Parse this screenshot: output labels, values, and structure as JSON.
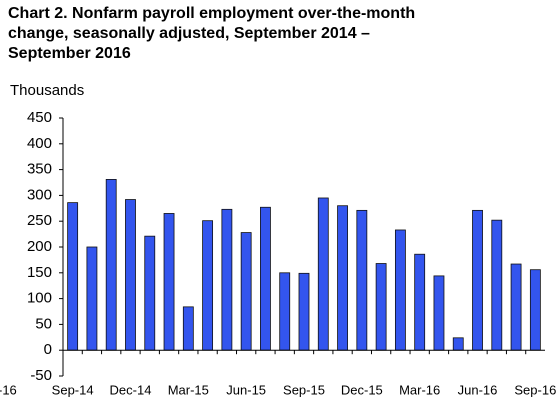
{
  "chart_data": {
    "type": "bar",
    "title": "Chart 2. Nonfarm payroll employment over-the-month change, seasonally adjusted, September 2014 – September 2016",
    "y_axis_label": "Thousands",
    "clipped_label": "-16",
    "categories": [
      "Sep-14",
      null,
      null,
      "Dec-14",
      null,
      null,
      "Mar-15",
      null,
      null,
      "Jun-15",
      null,
      null,
      "Sep-15",
      null,
      null,
      "Dec-15",
      null,
      null,
      "Mar-16",
      null,
      null,
      "Jun-16",
      null,
      null,
      "Sep-16"
    ],
    "values": [
      286,
      200,
      331,
      292,
      221,
      265,
      84,
      251,
      273,
      228,
      277,
      150,
      149,
      295,
      280,
      271,
      168,
      233,
      186,
      144,
      24,
      271,
      252,
      167,
      156
    ],
    "color": "#3355ee",
    "ylim": [
      -50,
      450
    ],
    "yticks": [
      -50,
      0,
      50,
      100,
      150,
      200,
      250,
      300,
      350,
      400,
      450
    ],
    "grid": false
  }
}
